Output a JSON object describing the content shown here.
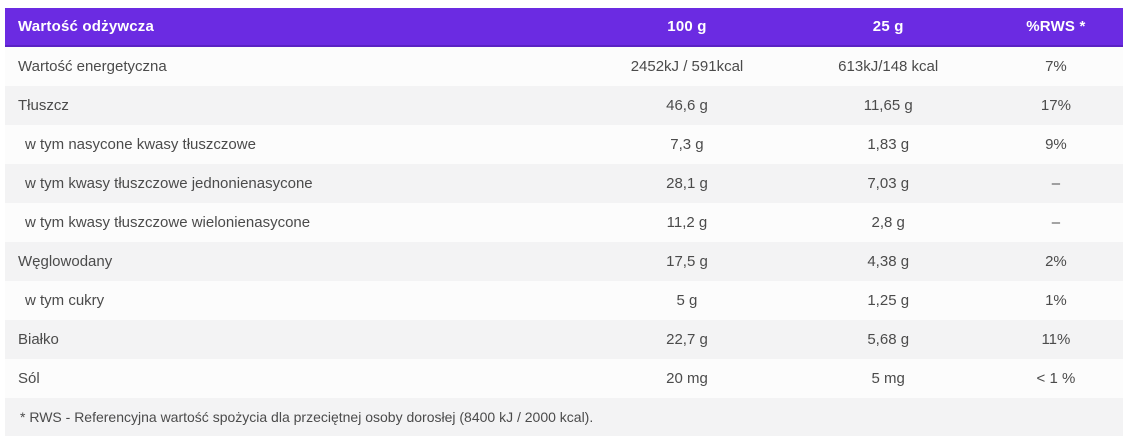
{
  "colors": {
    "accent_purple": "#6b2be2",
    "stripe_gray": "#f3f3f4",
    "text_gray": "#4b4b4b"
  },
  "table": {
    "header": {
      "label": "Wartość odżywcza",
      "col_100g": "100 g",
      "col_25g": "25 g",
      "col_rws": "%RWS *"
    },
    "rows": [
      {
        "label": "Wartość energetyczna",
        "per_100g": "2452kJ / 591kcal",
        "per_25g": "613kJ/148 kcal",
        "rws": "7%"
      },
      {
        "label": "Tłuszcz",
        "per_100g": "46,6 g",
        "per_25g": "11,65 g",
        "rws": "17%"
      },
      {
        "label": "w tym nasycone kwasy tłuszczowe",
        "per_100g": "7,3 g",
        "per_25g": "1,83 g",
        "rws": "9%"
      },
      {
        "label": "w tym kwasy tłuszczowe jednonienasycone",
        "per_100g": "28,1 g",
        "per_25g": "7,03 g",
        "rws": "–"
      },
      {
        "label": "w tym kwasy tłuszczowe wielonienasycone",
        "per_100g": "11,2 g",
        "per_25g": "2,8 g",
        "rws": "–"
      },
      {
        "label": "Węglowodany",
        "per_100g": "17,5 g",
        "per_25g": "4,38 g",
        "rws": "2%"
      },
      {
        "label": "w tym cukry",
        "per_100g": "5 g",
        "per_25g": "1,25 g",
        "rws": "1%"
      },
      {
        "label": "Białko",
        "per_100g": "22,7 g",
        "per_25g": "5,68 g",
        "rws": "11%"
      },
      {
        "label": "Sól",
        "per_100g": "20 mg",
        "per_25g": "5 mg",
        "rws": "< 1 %"
      }
    ],
    "footnote": "* RWS - Referencyjna wartość spożycia dla przeciętnej osoby dorosłej (8400 kJ / 2000 kcal)."
  }
}
